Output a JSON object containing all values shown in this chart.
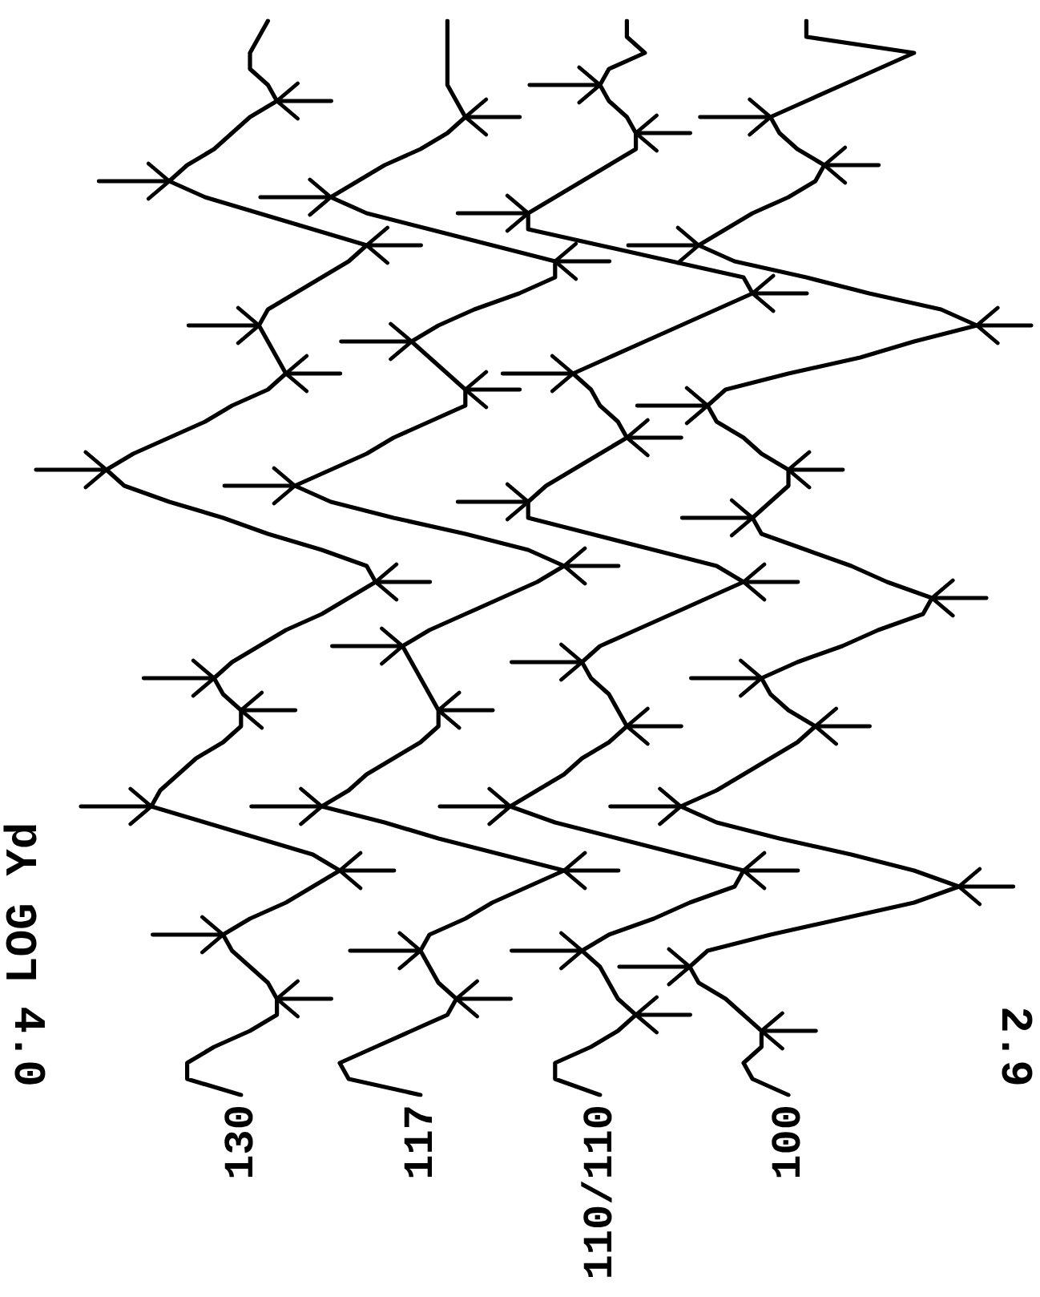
{
  "chart_data": {
    "type": "line",
    "orientation": "horizontal",
    "ylabel": "LOG Yd",
    "xlim": [
      4.0,
      2.9
    ],
    "xticks": [
      {
        "value": 4,
        "label": "4.0"
      },
      2.9
    ],
    "grid": false,
    "legend": false,
    "marker": "none",
    "categories": [
      null,
      null,
      null,
      null,
      null,
      null,
      null,
      null,
      null,
      null,
      null,
      null,
      null,
      null,
      null,
      null,
      null,
      null,
      null,
      null,
      null,
      null,
      null,
      null,
      null,
      null,
      null,
      null,
      null,
      null,
      null,
      null,
      null,
      null,
      null,
      null,
      null,
      null,
      null,
      null,
      null,
      null,
      null,
      null,
      null,
      null,
      null,
      null,
      null,
      null,
      null,
      null,
      null,
      null,
      null,
      null,
      null,
      null,
      null,
      null,
      null,
      null,
      null,
      null,
      null,
      null,
      null,
      null
    ],
    "series": [
      {
        "name": "130",
        "color": "#000000",
        "values": [
          3.73,
          3.74,
          3.75,
          3.75,
          3.73,
          3.72,
          3.75,
          3.77,
          3.79,
          3.82,
          3.84,
          3.8,
          3.74,
          3.68,
          3.62,
          3.64,
          3.67,
          3.7,
          3.73,
          3.74,
          3.73,
          3.72,
          3.71,
          3.73,
          3.77,
          3.8,
          3.84,
          3.88,
          3.91,
          3.89,
          3.84,
          3.78,
          3.73,
          3.67,
          3.62,
          3.61,
          3.64,
          3.67,
          3.71,
          3.74,
          3.77,
          3.79,
          3.78,
          3.76,
          3.76,
          3.78,
          3.81,
          3.83,
          3.85,
          3.86,
          3.8,
          3.74,
          3.68,
          3.65,
          3.68,
          3.71,
          3.75,
          3.78,
          3.77,
          3.75,
          3.73,
          3.72,
          3.72,
          3.75,
          3.79,
          3.82,
          3.82,
          3.76
        ]
      },
      {
        "name": "117",
        "color": "#000000",
        "values": [
          3.53,
          3.53,
          3.53,
          3.53,
          3.53,
          3.52,
          3.51,
          3.53,
          3.56,
          3.6,
          3.63,
          3.66,
          3.62,
          3.55,
          3.48,
          3.41,
          3.41,
          3.45,
          3.5,
          3.54,
          3.57,
          3.55,
          3.53,
          3.51,
          3.51,
          3.55,
          3.59,
          3.62,
          3.66,
          3.7,
          3.66,
          3.59,
          3.51,
          3.44,
          3.4,
          3.43,
          3.47,
          3.51,
          3.55,
          3.58,
          3.57,
          3.56,
          3.55,
          3.54,
          3.54,
          3.56,
          3.59,
          3.62,
          3.64,
          3.67,
          3.6,
          3.54,
          3.47,
          3.4,
          3.44,
          3.48,
          3.51,
          3.55,
          3.56,
          3.55,
          3.54,
          3.52,
          3.53,
          3.57,
          3.61,
          3.65,
          3.64,
          3.56
        ]
      },
      {
        "name": "110/110",
        "color": "#000000",
        "values": [
          3.33,
          3.33,
          3.31,
          3.35,
          3.36,
          3.35,
          3.33,
          3.32,
          3.32,
          3.35,
          3.38,
          3.41,
          3.44,
          3.44,
          3.36,
          3.28,
          3.2,
          3.19,
          3.23,
          3.27,
          3.31,
          3.35,
          3.39,
          3.37,
          3.36,
          3.34,
          3.33,
          3.36,
          3.39,
          3.42,
          3.44,
          3.44,
          3.37,
          3.3,
          3.23,
          3.2,
          3.24,
          3.28,
          3.32,
          3.36,
          3.38,
          3.37,
          3.35,
          3.34,
          3.33,
          3.35,
          3.38,
          3.4,
          3.43,
          3.46,
          3.41,
          3.34,
          3.27,
          3.2,
          3.21,
          3.26,
          3.3,
          3.35,
          3.38,
          3.36,
          3.35,
          3.34,
          3.32,
          3.34,
          3.37,
          3.41,
          3.41,
          3.36
        ]
      },
      {
        "name": "100",
        "color": "#000000",
        "values": [
          3.13,
          3.13,
          3.01,
          3.05,
          3.09,
          3.13,
          3.17,
          3.16,
          3.14,
          3.11,
          3.12,
          3.15,
          3.19,
          3.22,
          3.25,
          3.21,
          3.13,
          3.06,
          2.98,
          2.94,
          3.01,
          3.07,
          3.15,
          3.22,
          3.24,
          3.23,
          3.2,
          3.18,
          3.15,
          3.15,
          3.17,
          3.19,
          3.18,
          3.13,
          3.08,
          3.04,
          2.99,
          3.0,
          3.05,
          3.09,
          3.14,
          3.18,
          3.17,
          3.15,
          3.12,
          3.14,
          3.17,
          3.2,
          3.23,
          3.27,
          3.23,
          3.16,
          3.08,
          3.01,
          2.96,
          3.01,
          3.09,
          3.17,
          3.24,
          3.26,
          3.25,
          3.22,
          3.2,
          3.18,
          3.18,
          3.2,
          3.19,
          3.15
        ]
      }
    ]
  }
}
